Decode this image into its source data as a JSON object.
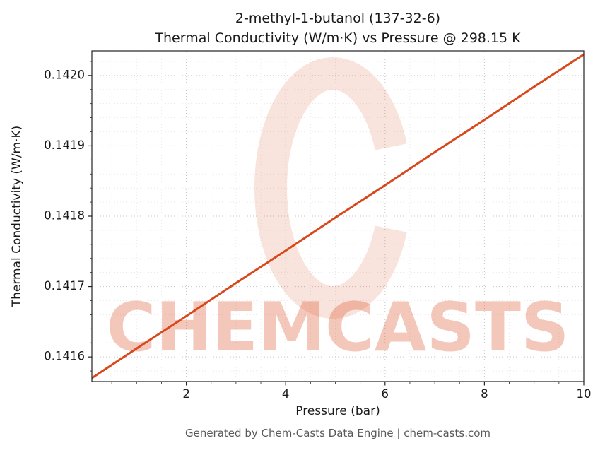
{
  "title": {
    "line1": "2-methyl-1-butanol (137-32-6)",
    "line2": "Thermal Conductivity (W/m·K) vs Pressure @ 298.15 K"
  },
  "watermark": {
    "text": "CHEMCASTS",
    "color": "#d8481c"
  },
  "footer": "Generated by Chem-Casts Data Engine | chem-casts.com",
  "chart_data": {
    "type": "line",
    "title": "2-methyl-1-butanol (137-32-6) Thermal Conductivity (W/m·K) vs Pressure @ 298.15 K",
    "substance": "2-methyl-1-butanol",
    "cas": "137-32-6",
    "temperature": "298.15 K",
    "xlabel": "Pressure (bar)",
    "ylabel": "Thermal Conductivity (W/m·K)",
    "x": [
      0.1,
      1,
      2,
      3,
      4,
      5,
      6,
      7,
      8,
      9,
      10
    ],
    "y": [
      0.14157,
      0.141612,
      0.141658,
      0.141705,
      0.141751,
      0.141798,
      0.141844,
      0.141891,
      0.141937,
      0.141984,
      0.14203
    ],
    "xlim": [
      0.1,
      10
    ],
    "ylim": [
      0.141565,
      0.142035
    ],
    "xticks": [
      2,
      4,
      6,
      8,
      10
    ],
    "xtick_labels": [
      "2",
      "4",
      "6",
      "8",
      "10"
    ],
    "yticks": [
      0.1416,
      0.1417,
      0.1418,
      0.1419,
      0.142
    ],
    "ytick_labels": [
      "0.1416",
      "0.1417",
      "0.1418",
      "0.1419",
      "0.1420"
    ],
    "x_minor_step": 0.5,
    "y_minor_step": 2e-05,
    "grid": true,
    "legend": false,
    "line_color": "#d8481c"
  }
}
